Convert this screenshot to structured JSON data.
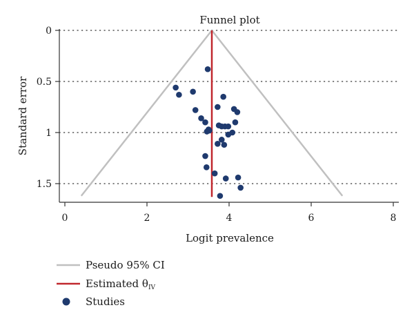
{
  "chart_data": {
    "type": "scatter",
    "title": "Funnel plot",
    "xlabel": "Logit prevalence",
    "ylabel": "Standard error",
    "xlim": [
      0,
      8
    ],
    "ylim": [
      0,
      1.65
    ],
    "y_inverted": true,
    "grid": "horizontal dotted",
    "legend_position": "bottom-left",
    "x_ticks": [
      "0",
      "2",
      "4",
      "6",
      "8"
    ],
    "y_ticks": [
      "0",
      "0.5",
      "1",
      "1.5"
    ],
    "estimate": 3.58,
    "ci_lines": [
      {
        "x": [
          0.4,
          3.58,
          6.76
        ],
        "y": [
          1.62,
          0,
          1.62
        ]
      }
    ],
    "series": [
      {
        "name": "Studies",
        "points": [
          {
            "x": 3.48,
            "y": 0.38
          },
          {
            "x": 2.7,
            "y": 0.56
          },
          {
            "x": 2.78,
            "y": 0.63
          },
          {
            "x": 3.12,
            "y": 0.6
          },
          {
            "x": 3.86,
            "y": 0.65
          },
          {
            "x": 3.72,
            "y": 0.75
          },
          {
            "x": 3.18,
            "y": 0.78
          },
          {
            "x": 4.12,
            "y": 0.77
          },
          {
            "x": 4.2,
            "y": 0.8
          },
          {
            "x": 3.32,
            "y": 0.86
          },
          {
            "x": 3.42,
            "y": 0.9
          },
          {
            "x": 4.15,
            "y": 0.9
          },
          {
            "x": 3.75,
            "y": 0.93
          },
          {
            "x": 3.82,
            "y": 0.94
          },
          {
            "x": 3.9,
            "y": 0.94
          },
          {
            "x": 3.98,
            "y": 0.94
          },
          {
            "x": 3.5,
            "y": 0.97
          },
          {
            "x": 3.46,
            "y": 0.99
          },
          {
            "x": 3.52,
            "y": 0.98
          },
          {
            "x": 4.08,
            "y": 1.0
          },
          {
            "x": 3.98,
            "y": 1.02
          },
          {
            "x": 3.82,
            "y": 1.07
          },
          {
            "x": 3.72,
            "y": 1.11
          },
          {
            "x": 3.88,
            "y": 1.12
          },
          {
            "x": 3.42,
            "y": 1.23
          },
          {
            "x": 3.45,
            "y": 1.34
          },
          {
            "x": 3.65,
            "y": 1.4
          },
          {
            "x": 3.92,
            "y": 1.45
          },
          {
            "x": 4.22,
            "y": 1.44
          },
          {
            "x": 4.28,
            "y": 1.54
          },
          {
            "x": 3.78,
            "y": 1.62
          }
        ]
      }
    ],
    "colors": {
      "ci": "#c0c0c0",
      "estimate": "#c0272d",
      "points": "#1f3a6e",
      "grid": "#333333",
      "axis": "#333333"
    }
  },
  "legend": {
    "ci_label": "Pseudo 95% CI",
    "estimate_label": "Estimated θ",
    "estimate_sub": "IV",
    "studies_label": "Studies"
  }
}
